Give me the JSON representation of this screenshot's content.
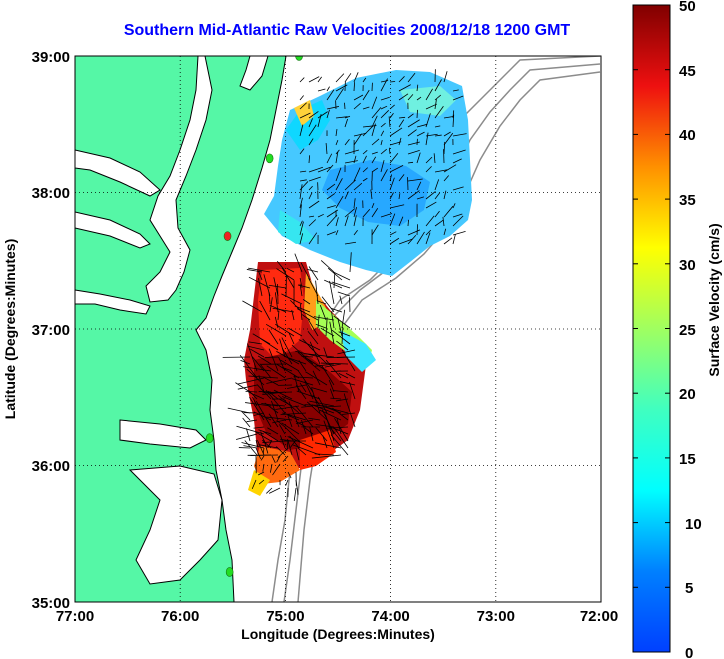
{
  "title": "Southern Mid-Atlantic Raw Velocities 2008/12/18 1200 GMT",
  "axes": {
    "xlabel": "Longitude (Degrees:Minutes)",
    "ylabel": "Latitude (Degrees:Minutes)",
    "x_ticks": [
      "77:00",
      "76:00",
      "75:00",
      "74:00",
      "73:00",
      "72:00"
    ],
    "y_ticks": [
      "39:00",
      "38:00",
      "37:00",
      "36:00",
      "35:00"
    ]
  },
  "colorbar": {
    "label": "Surface Velocity (cm/s)",
    "ticks": [
      "50",
      "45",
      "40",
      "35",
      "30",
      "25",
      "20",
      "15",
      "10",
      "5",
      "0"
    ],
    "min": 0,
    "max": 50,
    "unit": "cm/s"
  },
  "map_extent": {
    "lon_min": -77,
    "lon_max": -72,
    "lat_min": 35,
    "lat_max": 39
  },
  "colors": {
    "title": "#0000ff",
    "land": "#55f7a6",
    "coast": "#000000",
    "bathymetry": "#8c8c8c",
    "station": "#22dd22",
    "station_alt": "#ee2222"
  },
  "stations": [
    {
      "lon": -74.87,
      "lat": 39.0,
      "status": "active"
    },
    {
      "lon": -75.15,
      "lat": 38.25,
      "status": "active"
    },
    {
      "lon": -75.55,
      "lat": 37.68,
      "status": "alt"
    },
    {
      "lon": -75.72,
      "lat": 36.2,
      "status": "active"
    },
    {
      "lon": -75.53,
      "lat": 35.22,
      "status": "active"
    }
  ]
}
